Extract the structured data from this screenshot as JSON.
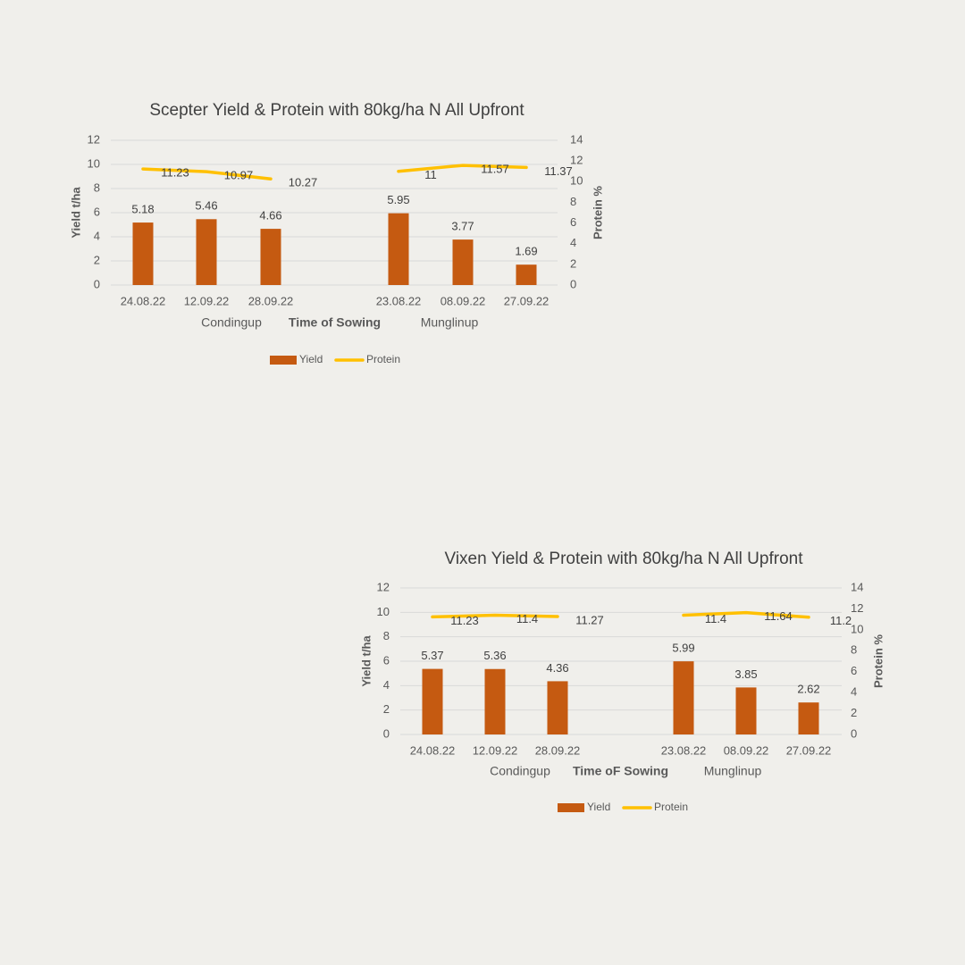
{
  "colors": {
    "background": "#f0efeb",
    "bar": "#c55a11",
    "line": "#ffc000",
    "grid": "#d9d9d9",
    "text": "#595959",
    "title": "#404040"
  },
  "chart_data": [
    {
      "type": "bar",
      "title": "Scepter Yield & Protein with 80kg/ha N All Upfront",
      "xlabel": "Time of Sowing",
      "ylabel": "Yield t/ha",
      "y2label": "Protein %",
      "ylim": [
        0,
        12
      ],
      "y2lim": [
        0,
        14
      ],
      "yticks": [
        "0",
        "2",
        "4",
        "6",
        "8",
        "10",
        "12"
      ],
      "y2ticks": [
        "0",
        "2",
        "4",
        "6",
        "8",
        "10",
        "12",
        "14"
      ],
      "grid": true,
      "legend_position": "bottom",
      "groups": [
        {
          "name": "Condingup",
          "categories": [
            "24.08.22",
            "12.09.22",
            "28.09.22"
          ]
        },
        {
          "name": "Munglinup",
          "categories": [
            "23.08.22",
            "08.09.22",
            "27.09.22"
          ]
        }
      ],
      "series": [
        {
          "name": "Yield",
          "type": "bar",
          "axis": "left",
          "values": [
            5.18,
            5.46,
            4.66,
            5.95,
            3.77,
            1.69
          ],
          "labels": [
            "5.18",
            "5.46",
            "4.66",
            "5.95",
            "3.77",
            "1.69"
          ]
        },
        {
          "name": "Protein",
          "type": "line",
          "axis": "right",
          "values": [
            11.23,
            10.97,
            10.27,
            11,
            11.57,
            11.37
          ],
          "labels": [
            "11.23",
            "10.97",
            "10.27",
            "11",
            "11.57",
            "11.37"
          ]
        }
      ]
    },
    {
      "type": "bar",
      "title": "Vixen Yield & Protein with 80kg/ha N All Upfront",
      "xlabel": "Time oF Sowing",
      "ylabel": "Yield t/ha",
      "y2label": "Protein %",
      "ylim": [
        0,
        12
      ],
      "y2lim": [
        0,
        14
      ],
      "yticks": [
        "0",
        "2",
        "4",
        "6",
        "8",
        "10",
        "12"
      ],
      "y2ticks": [
        "0",
        "2",
        "4",
        "6",
        "8",
        "10",
        "12",
        "14"
      ],
      "grid": true,
      "legend_position": "bottom",
      "groups": [
        {
          "name": "Condingup",
          "categories": [
            "24.08.22",
            "12.09.22",
            "28.09.22"
          ]
        },
        {
          "name": "Munglinup",
          "categories": [
            "23.08.22",
            "08.09.22",
            "27.09.22"
          ]
        }
      ],
      "series": [
        {
          "name": "Yield",
          "type": "bar",
          "axis": "left",
          "values": [
            5.37,
            5.36,
            4.36,
            5.99,
            3.85,
            2.62
          ],
          "labels": [
            "5.37",
            "5.36",
            "4.36",
            "5.99",
            "3.85",
            "2.62"
          ]
        },
        {
          "name": "Protein",
          "type": "line",
          "axis": "right",
          "values": [
            11.23,
            11.4,
            11.27,
            11.4,
            11.64,
            11.2
          ],
          "labels": [
            "11.23",
            "11.4",
            "11.27",
            "11.4",
            "11.64",
            "11.2"
          ]
        }
      ]
    }
  ]
}
